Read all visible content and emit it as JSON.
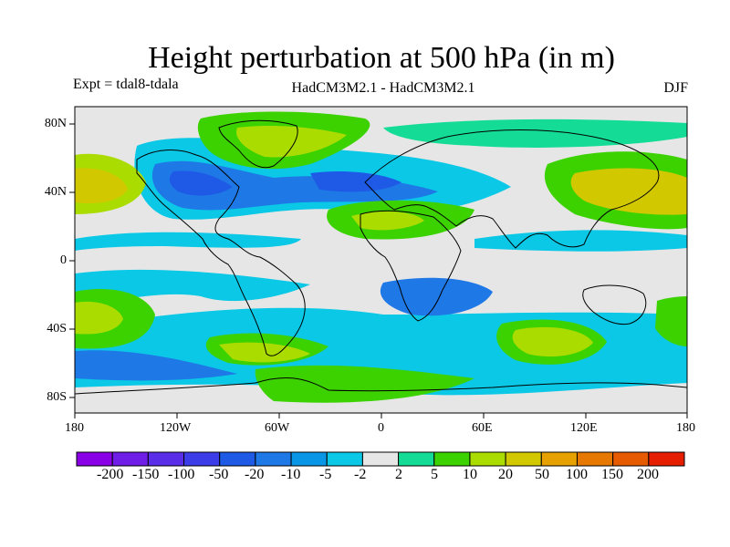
{
  "title": "Height perturbation at 500 hPa (in m)",
  "left_label": "Expt = tdal8-tdala",
  "center_label": "HadCM3M2.1 - HadCM3M2.1",
  "right_label": "DJF",
  "x_ticks": [
    "180",
    "120W",
    "60W",
    "0",
    "60E",
    "120E",
    "180"
  ],
  "y_ticks": [
    "80N",
    "40N",
    "0",
    "40S",
    "80S"
  ],
  "colorbar": {
    "colors": [
      "#8a00e6",
      "#6e1ee6",
      "#5a2ee8",
      "#3c3ce8",
      "#1e5ae6",
      "#1e78e6",
      "#0a96e6",
      "#0ac8e6",
      "#e6e6e6",
      "#14dc96",
      "#3cd200",
      "#aadc00",
      "#d2c800",
      "#e6a000",
      "#e67800",
      "#e65a00",
      "#e61e00"
    ],
    "labels": [
      "-200",
      "-150",
      "-100",
      "-50",
      "-20",
      "-10",
      "-5",
      "-2",
      "2",
      "5",
      "10",
      "20",
      "50",
      "100",
      "150",
      "200"
    ]
  }
}
